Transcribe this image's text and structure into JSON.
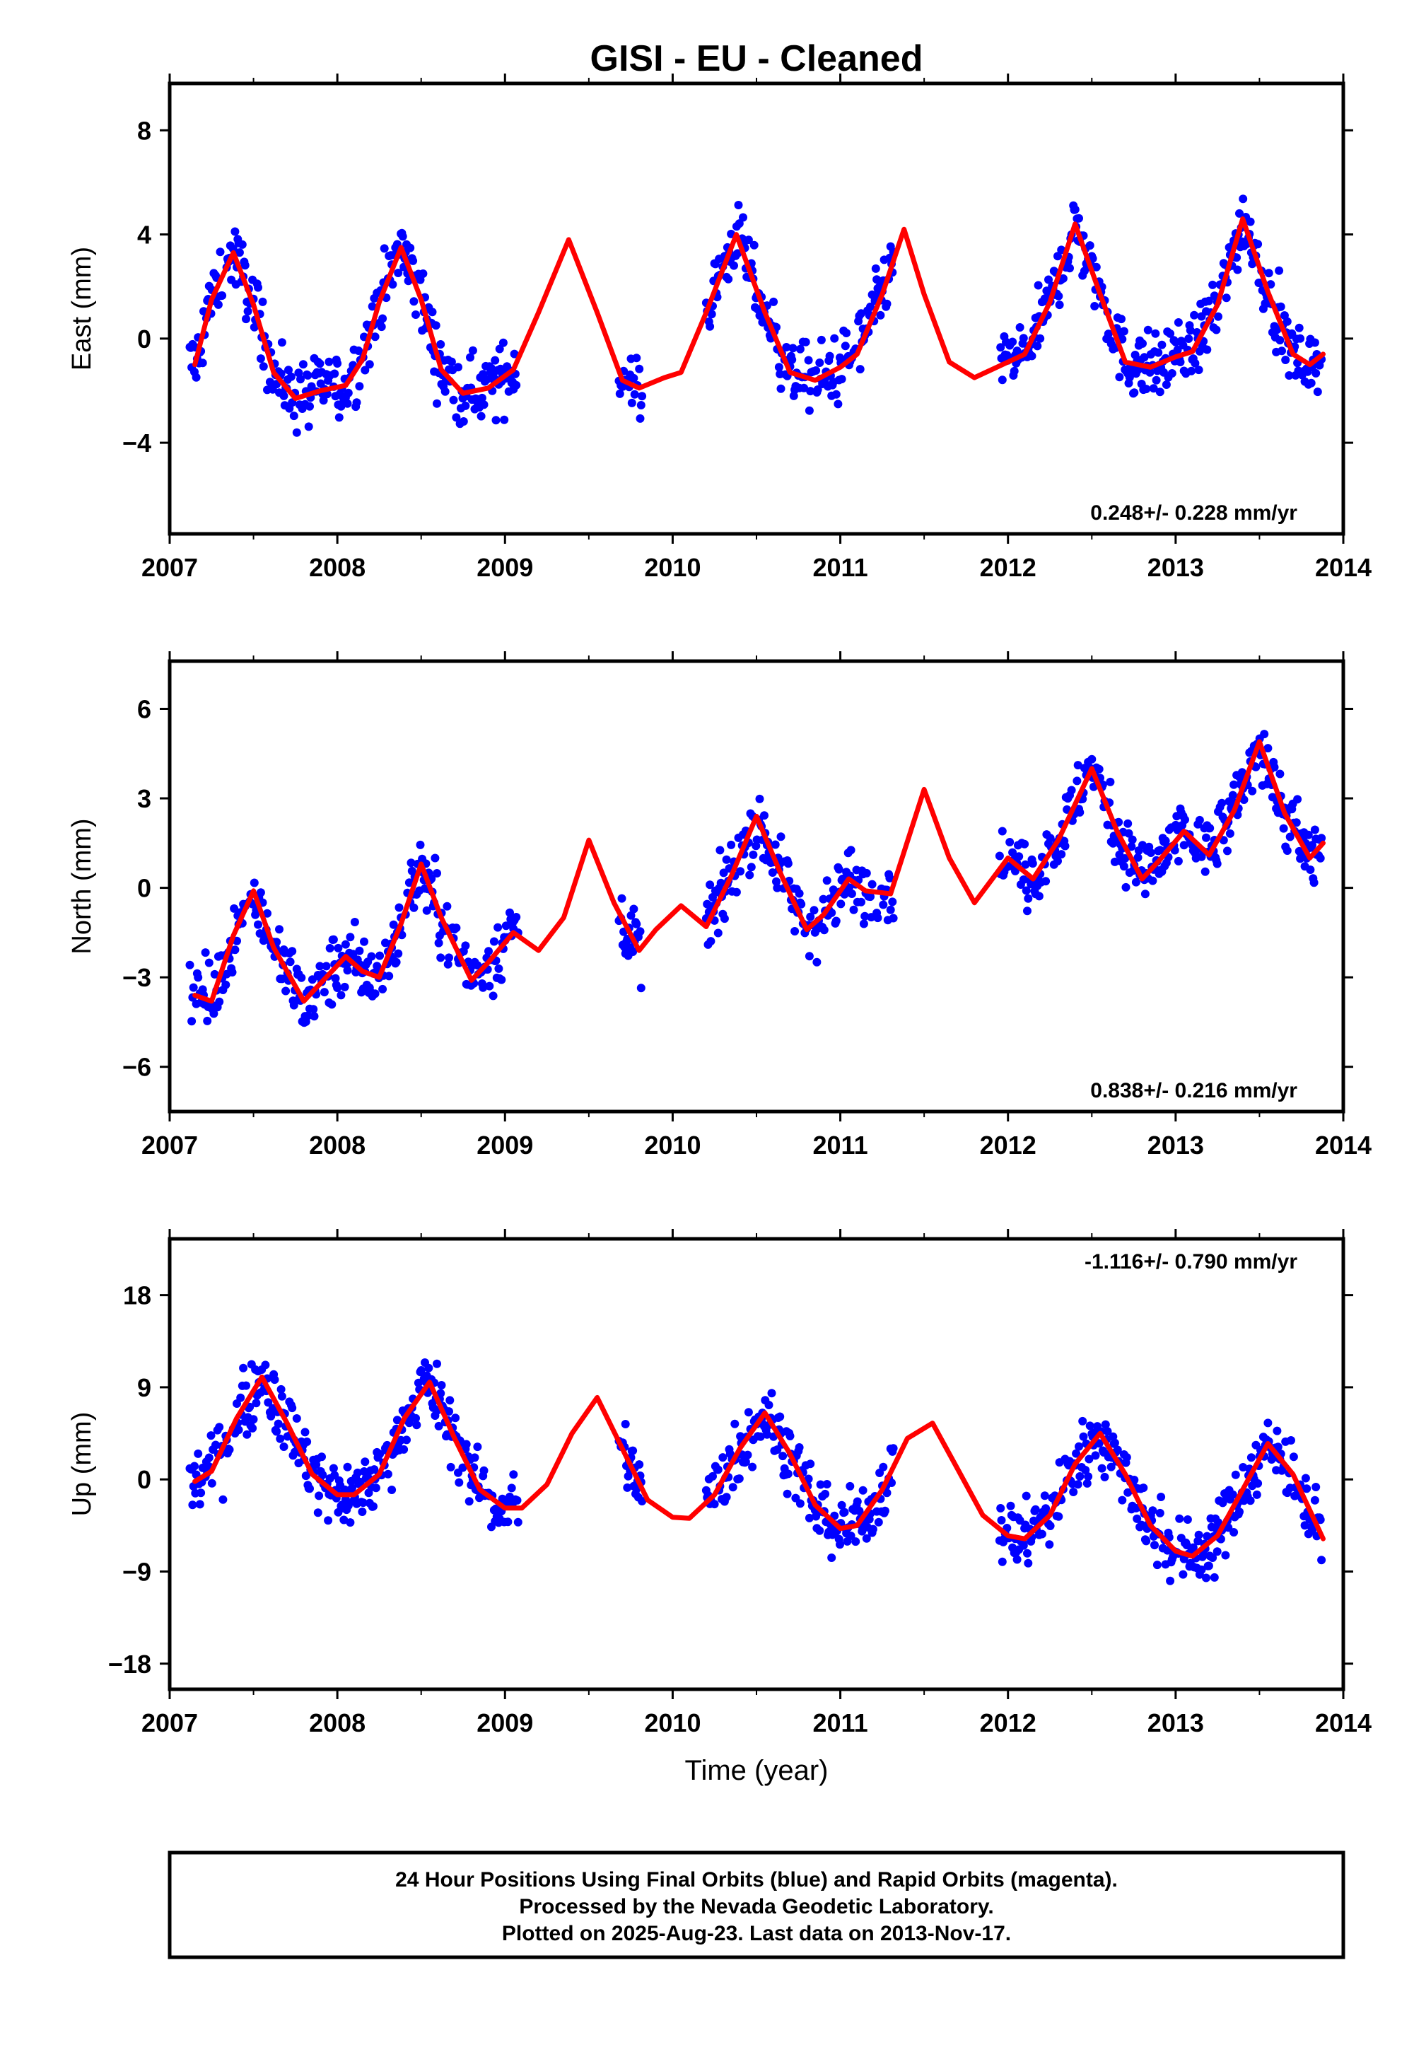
{
  "title": "GISI  - EU - Cleaned",
  "xlabel": "Time (year)",
  "footer": {
    "line1": "24 Hour Positions Using Final Orbits (blue) and Rapid Orbits (magenta).",
    "line2": "Processed by the Nevada Geodetic Laboratory.",
    "line3": "Plotted on 2025-Aug-23. Last data on 2013-Nov-17."
  },
  "colors": {
    "points": "#0000ff",
    "fit": "#ff0000",
    "frame": "#000000"
  },
  "chart_data": [
    {
      "type": "scatter",
      "panel": "east",
      "ylabel": "East (mm)",
      "xlim": [
        2007,
        2014
      ],
      "ylim": [
        -7.5,
        9.8
      ],
      "xticks": [
        2007,
        2008,
        2009,
        2010,
        2011,
        2012,
        2013,
        2014
      ],
      "yticks": [
        -4,
        0,
        4,
        8
      ],
      "rate": "0.248+/- 0.228 mm/yr",
      "rate_position": "bottom-right",
      "fit_line": {
        "x": [
          2007.15,
          2007.25,
          2007.38,
          2007.5,
          2007.62,
          2007.75,
          2007.9,
          2008.05,
          2008.15,
          2008.25,
          2008.38,
          2008.5,
          2008.62,
          2008.75,
          2008.9,
          2009.05,
          2009.2,
          2009.38,
          2009.55,
          2009.7,
          2009.8,
          2009.95,
          2010.05,
          2010.2,
          2010.38,
          2010.55,
          2010.7,
          2010.85,
          2011.0,
          2011.1,
          2011.25,
          2011.38,
          2011.5,
          2011.65,
          2011.8,
          2012.0,
          2012.1,
          2012.25,
          2012.4,
          2012.55,
          2012.7,
          2012.85,
          2013.0,
          2013.1,
          2013.25,
          2013.4,
          2013.55,
          2013.7,
          2013.8,
          2013.88
        ],
        "y": [
          -1.0,
          1.5,
          3.3,
          1.3,
          -1.3,
          -2.3,
          -2.0,
          -1.8,
          -0.8,
          1.4,
          3.5,
          1.5,
          -1.2,
          -2.1,
          -1.9,
          -1.2,
          1.0,
          3.8,
          1.0,
          -1.6,
          -1.9,
          -1.5,
          -1.3,
          1.0,
          4.0,
          1.0,
          -1.3,
          -1.6,
          -1.1,
          -0.6,
          1.7,
          4.2,
          1.7,
          -0.9,
          -1.5,
          -0.9,
          -0.6,
          1.4,
          4.4,
          1.7,
          -0.9,
          -1.1,
          -0.7,
          -0.5,
          1.3,
          4.6,
          1.8,
          -0.6,
          -1.0,
          -0.6
        ]
      }
    },
    {
      "type": "scatter",
      "panel": "north",
      "ylabel": "North (mm)",
      "xlim": [
        2007,
        2014
      ],
      "ylim": [
        -7.5,
        7.6
      ],
      "xticks": [
        2007,
        2008,
        2009,
        2010,
        2011,
        2012,
        2013,
        2014
      ],
      "yticks": [
        -6,
        -3,
        0,
        3,
        6
      ],
      "rate": "0.838+/- 0.216 mm/yr",
      "rate_position": "bottom-right",
      "fit_line": {
        "x": [
          2007.15,
          2007.25,
          2007.38,
          2007.5,
          2007.62,
          2007.8,
          2007.9,
          2008.05,
          2008.15,
          2008.25,
          2008.38,
          2008.5,
          2008.62,
          2008.8,
          2008.9,
          2009.05,
          2009.2,
          2009.35,
          2009.5,
          2009.65,
          2009.8,
          2009.9,
          2010.05,
          2010.2,
          2010.35,
          2010.5,
          2010.65,
          2010.8,
          2010.9,
          2011.05,
          2011.15,
          2011.3,
          2011.5,
          2011.65,
          2011.8,
          2012.0,
          2012.15,
          2012.3,
          2012.5,
          2012.65,
          2012.8,
          2012.9,
          2013.05,
          2013.2,
          2013.35,
          2013.5,
          2013.65,
          2013.8,
          2013.88
        ],
        "y": [
          -3.6,
          -3.8,
          -1.6,
          -0.1,
          -2.0,
          -3.8,
          -3.2,
          -2.3,
          -2.8,
          -3.0,
          -1.2,
          0.8,
          -1.0,
          -3.1,
          -2.5,
          -1.5,
          -2.1,
          -1.0,
          1.6,
          -0.5,
          -2.1,
          -1.4,
          -0.6,
          -1.3,
          0.4,
          2.4,
          0.4,
          -1.4,
          -0.9,
          0.3,
          -0.1,
          -0.2,
          3.3,
          1.0,
          -0.5,
          1.0,
          0.3,
          1.6,
          4.0,
          1.9,
          0.3,
          0.9,
          1.9,
          1.1,
          2.6,
          4.9,
          2.5,
          1.0,
          1.5
        ]
      }
    },
    {
      "type": "scatter",
      "panel": "up",
      "ylabel": "Up (mm)",
      "xlim": [
        2007,
        2014
      ],
      "ylim": [
        -20.5,
        23.5
      ],
      "xticks": [
        2007,
        2008,
        2009,
        2010,
        2011,
        2012,
        2013,
        2014
      ],
      "yticks": [
        -18,
        -9,
        0,
        9,
        18
      ],
      "rate": "-1.116+/- 0.790 mm/yr",
      "rate_position": "top-right",
      "fit_line": {
        "x": [
          2007.15,
          2007.25,
          2007.4,
          2007.55,
          2007.7,
          2007.85,
          2008.0,
          2008.1,
          2008.25,
          2008.4,
          2008.55,
          2008.7,
          2008.85,
          2009.0,
          2009.1,
          2009.25,
          2009.4,
          2009.55,
          2009.7,
          2009.85,
          2010.0,
          2010.1,
          2010.25,
          2010.4,
          2010.55,
          2010.7,
          2010.85,
          2011.0,
          2011.1,
          2011.25,
          2011.4,
          2011.55,
          2011.7,
          2011.85,
          2012.0,
          2012.1,
          2012.25,
          2012.4,
          2012.55,
          2012.7,
          2012.85,
          2013.0,
          2013.1,
          2013.25,
          2013.4,
          2013.55,
          2013.7,
          2013.88
        ],
        "y": [
          -0.2,
          0.8,
          6.0,
          10.0,
          5.5,
          0.5,
          -1.5,
          -1.5,
          0.5,
          6.0,
          9.5,
          4.0,
          -1.0,
          -2.8,
          -2.8,
          -0.5,
          4.5,
          8.0,
          3.0,
          -2.0,
          -3.7,
          -3.8,
          -1.5,
          3.0,
          6.5,
          2.5,
          -2.5,
          -4.8,
          -4.5,
          -1.0,
          4.0,
          5.5,
          1.0,
          -3.5,
          -5.5,
          -5.8,
          -3.5,
          1.5,
          4.5,
          0.5,
          -4.5,
          -7.0,
          -7.5,
          -5.5,
          -1.0,
          3.5,
          0.5,
          -5.8
        ]
      }
    }
  ]
}
